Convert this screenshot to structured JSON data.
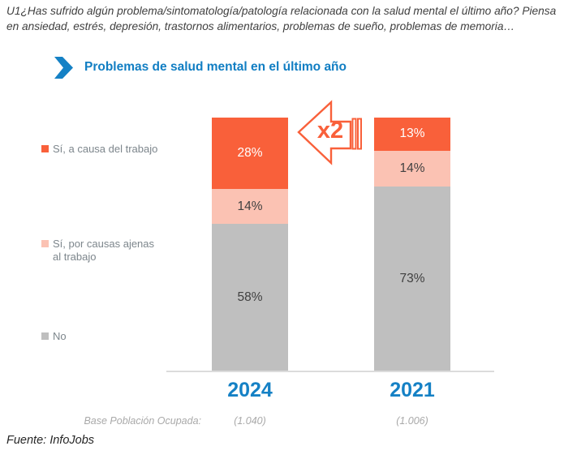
{
  "question": "U1¿Has sufrido algún problema/sintomatología/patología relacionada con la salud mental el último año? Piensa en ansiedad, estrés, depresión, trastornos alimentarios, problemas de sueño, problemas de memoria…",
  "header": {
    "title": "Problemas de salud mental en el último año",
    "chevron_icon": "chevron-right"
  },
  "chart_data": {
    "type": "stacked-bar",
    "title": "Problemas de salud mental en el último año",
    "categories": [
      "2024",
      "2021"
    ],
    "series": [
      {
        "name": "Sí, a causa del trabajo",
        "color": "#f9603a",
        "label_color": "#ffffff",
        "values": [
          28,
          13
        ]
      },
      {
        "name": "Sí, por causas ajenas al trabajo",
        "color": "#fbc2b3",
        "label_color": "#404040",
        "values": [
          14,
          14
        ]
      },
      {
        "name": "No",
        "color": "#bfbfbf",
        "label_color": "#404040",
        "values": [
          58,
          73
        ]
      }
    ],
    "value_suffix": "%",
    "ylim": [
      0,
      100
    ],
    "legend_position": "left",
    "annotation": "x2",
    "base_row": {
      "label": "Base Población Ocupada:",
      "values": [
        "(1.040)",
        "(1.006)"
      ]
    }
  },
  "footer": {
    "source": "Fuente: InfoJobs"
  },
  "colors": {
    "title_blue": "#117ec3",
    "year_blue": "#1581c5",
    "bar_orange": "#f9603a",
    "bar_pink": "#fbc2b3",
    "bar_gray": "#bfbfbf",
    "annotation_orange": "#f9603a",
    "legend_text": "#7d868c",
    "axis_line": "#dcdcdc"
  }
}
